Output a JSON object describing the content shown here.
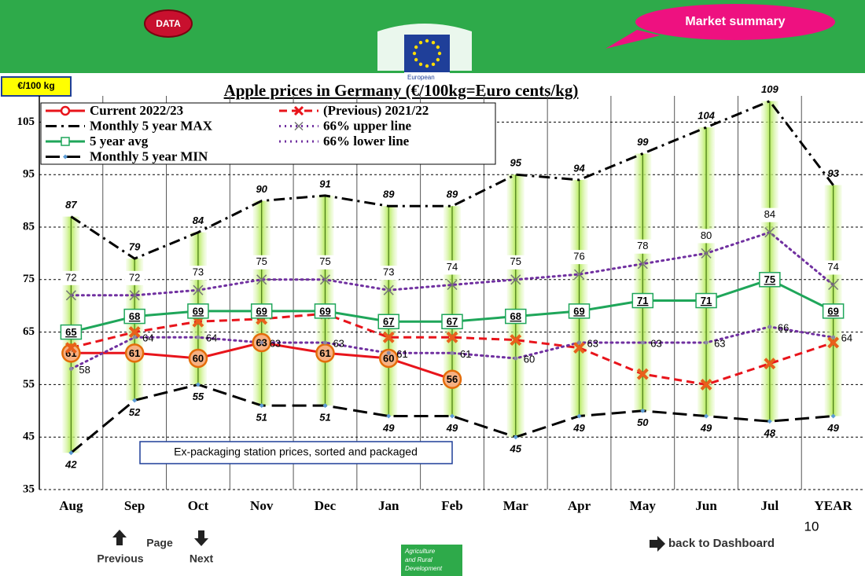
{
  "ui": {
    "button": "DATA",
    "banner": "Market summary",
    "logo_text": "European",
    "page_number": "10",
    "nav": {
      "previous": "Previous",
      "page": "Page",
      "next": "Next",
      "dashboard": "back to Dashboard"
    },
    "footer_lines": [
      "Agriculture",
      "and Rural",
      "Development"
    ]
  },
  "chart_data": {
    "type": "line",
    "title": "Apple prices in Germany (€/100kg=Euro cents/kg)",
    "y_label": "€/100 kg",
    "annotation": "Ex-packaging station prices, sorted and packaged",
    "categories": [
      "Aug",
      "Sep",
      "Oct",
      "Nov",
      "Dec",
      "Jan",
      "Feb",
      "Mar",
      "Apr",
      "May",
      "Jun",
      "Jul",
      "YEAR"
    ],
    "ylim": [
      35,
      110
    ],
    "yticks": [
      35,
      45,
      55,
      65,
      75,
      85,
      95,
      105
    ],
    "grid": true,
    "series": [
      {
        "name": "Current 2022/23",
        "color": "#e8141b",
        "line_style": "solid",
        "marker": "circle",
        "values": [
          61,
          61,
          60,
          63,
          61,
          60,
          56,
          null,
          null,
          null,
          null,
          null,
          null
        ]
      },
      {
        "name": "(Previous) 2021/22",
        "color": "#e8141b",
        "line_style": "dashed",
        "marker": "x",
        "values": [
          62,
          65,
          67,
          67.5,
          68.5,
          64,
          64,
          63.5,
          62,
          57,
          55,
          59,
          63
        ]
      },
      {
        "name": "Monthly 5 year MAX",
        "color": "#000000",
        "line_style": "dashdot",
        "marker": "none",
        "values": [
          87,
          79,
          84,
          90,
          91,
          89,
          89,
          95,
          94,
          99,
          104,
          109,
          93
        ]
      },
      {
        "name": "66% upper line",
        "color": "#7030a0",
        "line_style": "dotted",
        "marker": "x",
        "values": [
          72,
          72,
          73,
          75,
          75,
          73,
          74,
          75,
          76,
          78,
          80,
          84,
          74
        ]
      },
      {
        "name": "5 year avg",
        "color": "#1fa65a",
        "line_style": "solid",
        "marker": "square",
        "values": [
          65,
          68,
          69,
          69,
          69,
          67,
          67,
          68,
          69,
          71,
          71,
          75,
          69
        ]
      },
      {
        "name": "66% lower line",
        "color": "#7030a0",
        "line_style": "dotted",
        "marker": "dot",
        "values": [
          58,
          64,
          64,
          63,
          63,
          61,
          61,
          60,
          63,
          63,
          63,
          66,
          64
        ]
      },
      {
        "name": "Monthly 5 year MIN",
        "color": "#000000",
        "line_style": "longdash",
        "marker": "diamond",
        "values": [
          42,
          52,
          55,
          51,
          51,
          49,
          49,
          45,
          49,
          50,
          49,
          48,
          49
        ]
      }
    ]
  }
}
